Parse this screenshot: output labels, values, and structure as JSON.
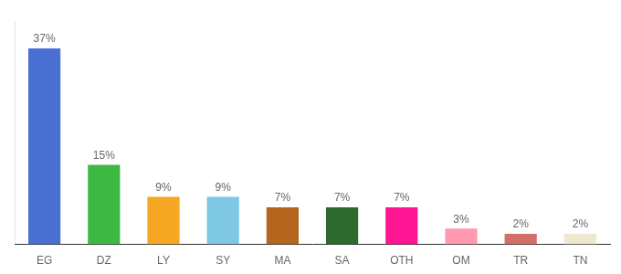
{
  "chart_data": {
    "type": "bar",
    "categories": [
      "EG",
      "DZ",
      "LY",
      "SY",
      "MA",
      "SA",
      "OTH",
      "OM",
      "TR",
      "TN"
    ],
    "values": [
      37,
      15,
      9,
      9,
      7,
      7,
      7,
      3,
      2,
      2
    ],
    "value_labels": [
      "37%",
      "15%",
      "9%",
      "9%",
      "7%",
      "7%",
      "7%",
      "3%",
      "2%",
      "2%"
    ],
    "colors": [
      "#4B70D4",
      "#3CB843",
      "#F5A623",
      "#7EC8E3",
      "#B5651D",
      "#2D6A2D",
      "#FF1493",
      "#FF9AAF",
      "#D07068",
      "#EEE8D0"
    ],
    "ylim": [
      0,
      42
    ],
    "data_labels": true,
    "tick_labels": "x",
    "grid": false
  }
}
